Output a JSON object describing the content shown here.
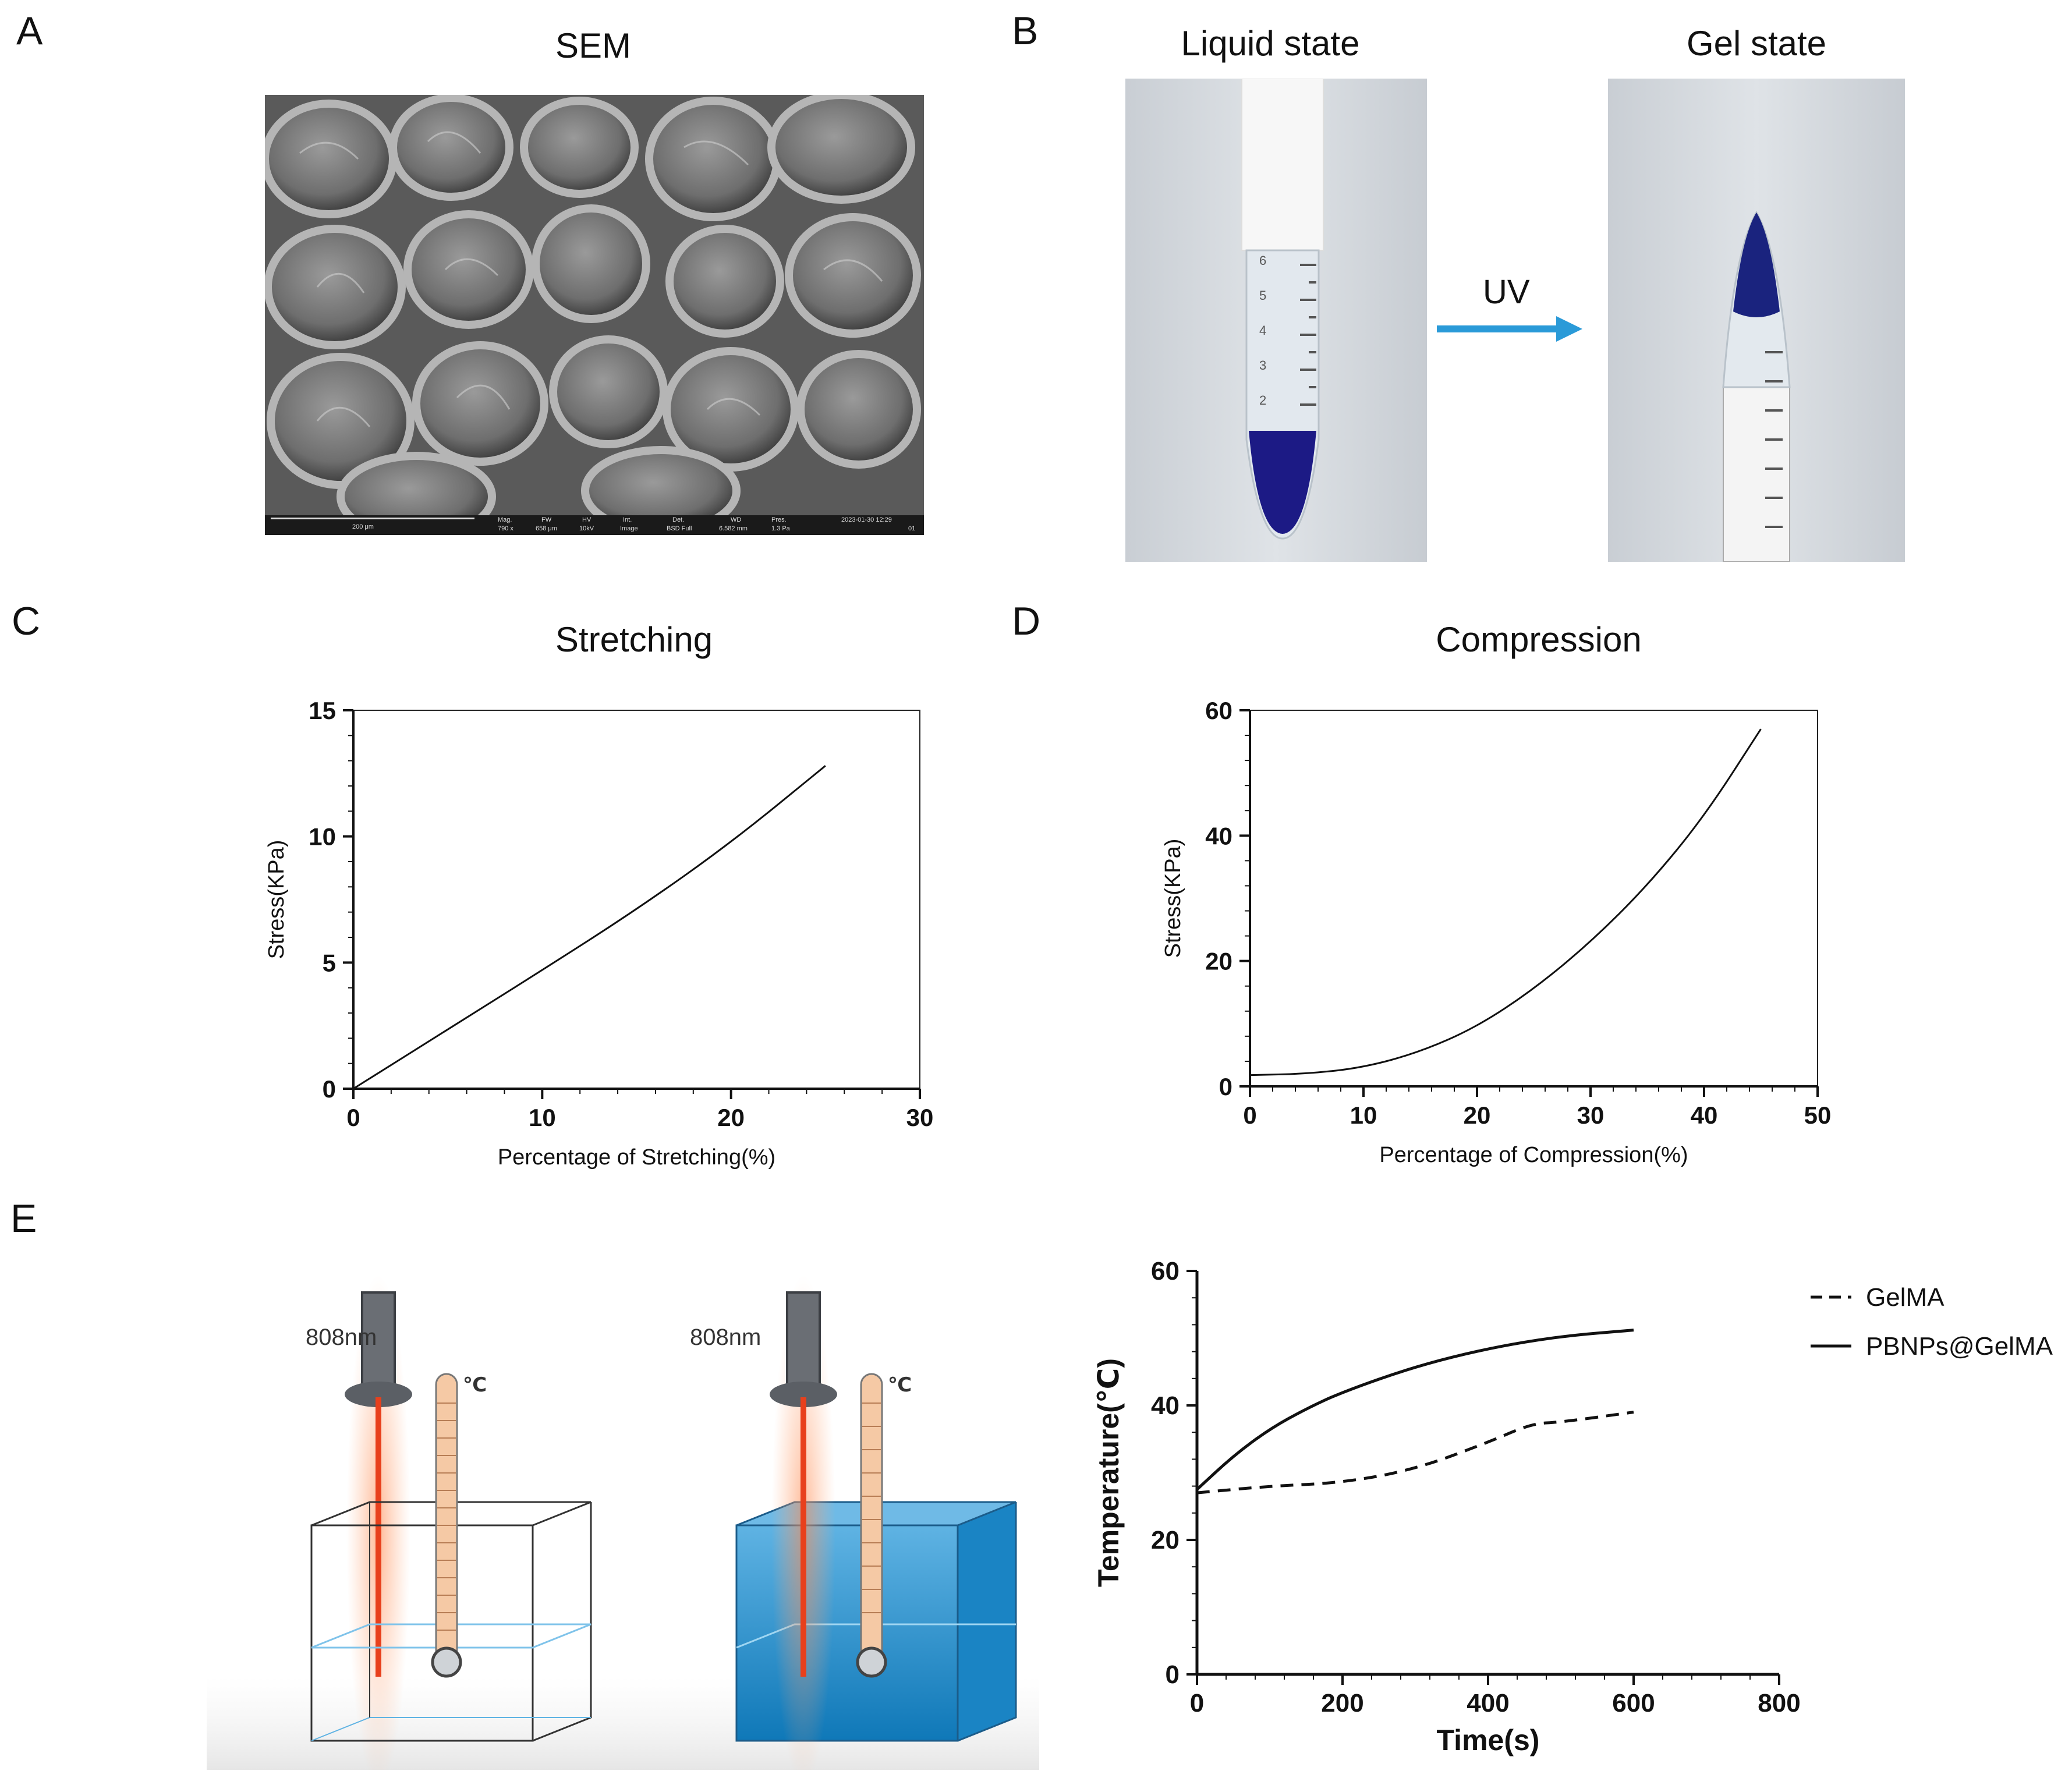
{
  "panels": {
    "a": {
      "letter": "A",
      "title": "SEM",
      "scalebar": {
        "scale": "200 μm",
        "mag_label": "Mag.",
        "mag": "790 x",
        "fw_label": "FW",
        "fw": "658 μm",
        "hv_label": "HV",
        "hv": "10kV",
        "int_label": "Int.",
        "int": "Image",
        "det_label": "Det.",
        "det": "BSD Full",
        "wd_label": "WD",
        "wd": "6.582 mm",
        "pres_label": "Pres.",
        "pres": "1.3 Pa",
        "date": "2023-01-30 12:29",
        "id": "01"
      }
    },
    "b": {
      "letter": "B",
      "left_title": "Liquid state",
      "right_title": "Gel state",
      "arrow_label": "UV",
      "tube_marks": [
        "6",
        "5",
        "4",
        "3",
        "2"
      ]
    },
    "c": {
      "letter": "C",
      "title": "Stretching"
    },
    "d": {
      "letter": "D",
      "title": "Compression"
    },
    "e": {
      "letter": "E",
      "laser_label_1": "808nm",
      "laser_label_2": "808nm",
      "thermo_label_1": "℃",
      "thermo_label_2": "℃"
    }
  },
  "colors": {
    "laser": "#e8401c",
    "gel_blue": "#1a8fd0",
    "sem_gray": "#6b6b6b",
    "uv_arrow": "#2a9ad8",
    "pbnp_blue": "#1a237e"
  },
  "chart_data": [
    {
      "id": "stretching",
      "type": "line",
      "title": "Stretching",
      "xlabel": "Percentage of Stretching(%)",
      "ylabel": "Stress(KPa)",
      "xlim": [
        0,
        30
      ],
      "ylim": [
        0,
        15
      ],
      "xticks": [
        0,
        10,
        20,
        30
      ],
      "yticks": [
        0,
        5,
        10,
        15
      ],
      "series": [
        {
          "style": "solid",
          "x": [
            0,
            5,
            10,
            15,
            20,
            25
          ],
          "y": [
            0,
            2.35,
            4.7,
            7.1,
            9.75,
            12.8
          ]
        }
      ]
    },
    {
      "id": "compression",
      "type": "line",
      "title": "Compression",
      "xlabel": "Percentage of Compression(%)",
      "ylabel": "Stress(KPa)",
      "xlim": [
        0,
        50
      ],
      "ylim": [
        0,
        60
      ],
      "xticks": [
        0,
        10,
        20,
        30,
        40,
        50
      ],
      "yticks": [
        0,
        20,
        40,
        60
      ],
      "series": [
        {
          "style": "solid",
          "x": [
            0,
            5,
            10,
            15,
            20,
            25,
            30,
            35,
            40,
            45
          ],
          "y": [
            1.8,
            2.0,
            3.0,
            5.5,
            9.5,
            15.5,
            23,
            32,
            43,
            57
          ]
        }
      ]
    },
    {
      "id": "temperature",
      "type": "line",
      "xlabel": "Time(s)",
      "ylabel": "Temperature(℃)",
      "xlim": [
        0,
        800
      ],
      "ylim": [
        0,
        60
      ],
      "xticks": [
        0,
        200,
        400,
        600,
        800
      ],
      "yticks": [
        0,
        20,
        40,
        60
      ],
      "series": [
        {
          "name": "GelMA",
          "style": "dashed",
          "x": [
            0,
            100,
            200,
            300,
            400,
            460,
            500,
            600
          ],
          "y": [
            27,
            28,
            28.5,
            30.5,
            34.5,
            37.3,
            37.5,
            39
          ]
        },
        {
          "name": "PBNPs@GelMA",
          "style": "solid",
          "x": [
            0,
            50,
            100,
            150,
            200,
            300,
            400,
            500,
            600
          ],
          "y": [
            27.5,
            32.5,
            36.5,
            39.5,
            42,
            45.8,
            48.5,
            50.3,
            51.2
          ]
        }
      ]
    }
  ]
}
